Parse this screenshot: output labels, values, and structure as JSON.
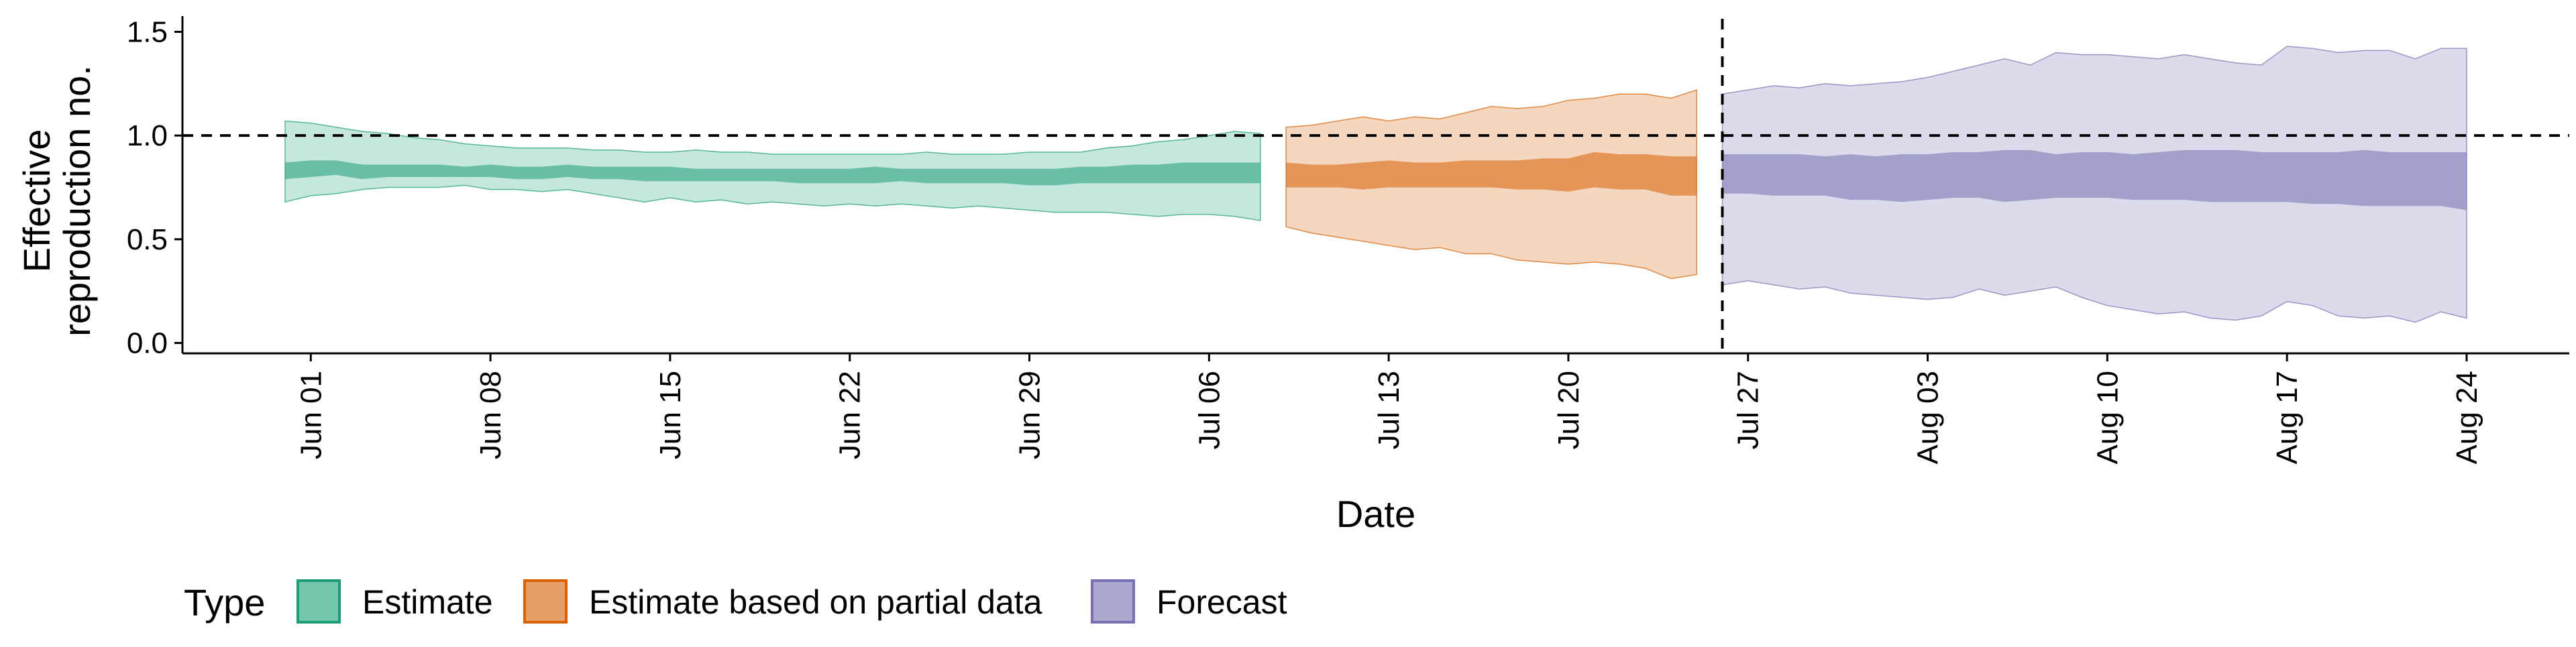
{
  "chart_data": {
    "type": "area",
    "title": "",
    "xlabel": "Date",
    "ylabel": "Effective\nreproduction no.",
    "ylim": [
      -0.05,
      1.55
    ],
    "xlim": [
      "2020-05-27",
      "2020-08-28"
    ],
    "y_ticks": [
      "0.0",
      "0.5",
      "1.0",
      "1.5"
    ],
    "x_ticks": [
      {
        "date": "2020-06-01",
        "label": "Jun 01"
      },
      {
        "date": "2020-06-08",
        "label": "Jun 08"
      },
      {
        "date": "2020-06-15",
        "label": "Jun 15"
      },
      {
        "date": "2020-06-22",
        "label": "Jun 22"
      },
      {
        "date": "2020-06-29",
        "label": "Jun 29"
      },
      {
        "date": "2020-07-06",
        "label": "Jul 06"
      },
      {
        "date": "2020-07-13",
        "label": "Jul 13"
      },
      {
        "date": "2020-07-20",
        "label": "Jul 20"
      },
      {
        "date": "2020-07-27",
        "label": "Jul 27"
      },
      {
        "date": "2020-08-03",
        "label": "Aug 03"
      },
      {
        "date": "2020-08-10",
        "label": "Aug 10"
      },
      {
        "date": "2020-08-17",
        "label": "Aug 17"
      },
      {
        "date": "2020-08-24",
        "label": "Aug 24"
      }
    ],
    "reference_lines": {
      "horizontal_y": 1.0,
      "vertical_date": "2020-07-26"
    },
    "grid": false,
    "legend": {
      "title": "Type",
      "position": "bottom",
      "entries": [
        "Estimate",
        "Estimate based on partial data",
        "Forecast"
      ]
    },
    "series": [
      {
        "name": "Estimate",
        "fill_color": "#1b9e77",
        "line_color": "#1b9e77",
        "points": [
          {
            "date": "2020-05-31",
            "lo90": 0.68,
            "hi90": 1.07,
            "lo50": 0.79,
            "hi50": 0.87
          },
          {
            "date": "2020-06-01",
            "lo90": 0.71,
            "hi90": 1.06,
            "lo50": 0.8,
            "hi50": 0.88
          },
          {
            "date": "2020-06-02",
            "lo90": 0.72,
            "hi90": 1.04,
            "lo50": 0.81,
            "hi50": 0.88
          },
          {
            "date": "2020-06-03",
            "lo90": 0.74,
            "hi90": 1.02,
            "lo50": 0.79,
            "hi50": 0.86
          },
          {
            "date": "2020-06-04",
            "lo90": 0.75,
            "hi90": 1.01,
            "lo50": 0.8,
            "hi50": 0.86
          },
          {
            "date": "2020-06-05",
            "lo90": 0.75,
            "hi90": 0.99,
            "lo50": 0.8,
            "hi50": 0.86
          },
          {
            "date": "2020-06-06",
            "lo90": 0.75,
            "hi90": 0.98,
            "lo50": 0.8,
            "hi50": 0.86
          },
          {
            "date": "2020-06-07",
            "lo90": 0.76,
            "hi90": 0.96,
            "lo50": 0.8,
            "hi50": 0.85
          },
          {
            "date": "2020-06-08",
            "lo90": 0.74,
            "hi90": 0.95,
            "lo50": 0.8,
            "hi50": 0.86
          },
          {
            "date": "2020-06-09",
            "lo90": 0.74,
            "hi90": 0.94,
            "lo50": 0.79,
            "hi50": 0.85
          },
          {
            "date": "2020-06-10",
            "lo90": 0.73,
            "hi90": 0.94,
            "lo50": 0.79,
            "hi50": 0.85
          },
          {
            "date": "2020-06-11",
            "lo90": 0.74,
            "hi90": 0.94,
            "lo50": 0.8,
            "hi50": 0.86
          },
          {
            "date": "2020-06-12",
            "lo90": 0.72,
            "hi90": 0.93,
            "lo50": 0.79,
            "hi50": 0.85
          },
          {
            "date": "2020-06-13",
            "lo90": 0.7,
            "hi90": 0.93,
            "lo50": 0.79,
            "hi50": 0.85
          },
          {
            "date": "2020-06-14",
            "lo90": 0.68,
            "hi90": 0.92,
            "lo50": 0.78,
            "hi50": 0.85
          },
          {
            "date": "2020-06-15",
            "lo90": 0.7,
            "hi90": 0.92,
            "lo50": 0.78,
            "hi50": 0.85
          },
          {
            "date": "2020-06-16",
            "lo90": 0.68,
            "hi90": 0.93,
            "lo50": 0.78,
            "hi50": 0.84
          },
          {
            "date": "2020-06-17",
            "lo90": 0.69,
            "hi90": 0.92,
            "lo50": 0.78,
            "hi50": 0.84
          },
          {
            "date": "2020-06-18",
            "lo90": 0.67,
            "hi90": 0.92,
            "lo50": 0.78,
            "hi50": 0.84
          },
          {
            "date": "2020-06-19",
            "lo90": 0.68,
            "hi90": 0.91,
            "lo50": 0.78,
            "hi50": 0.84
          },
          {
            "date": "2020-06-20",
            "lo90": 0.67,
            "hi90": 0.91,
            "lo50": 0.77,
            "hi50": 0.84
          },
          {
            "date": "2020-06-21",
            "lo90": 0.66,
            "hi90": 0.91,
            "lo50": 0.77,
            "hi50": 0.84
          },
          {
            "date": "2020-06-22",
            "lo90": 0.67,
            "hi90": 0.91,
            "lo50": 0.77,
            "hi50": 0.84
          },
          {
            "date": "2020-06-23",
            "lo90": 0.66,
            "hi90": 0.91,
            "lo50": 0.77,
            "hi50": 0.85
          },
          {
            "date": "2020-06-24",
            "lo90": 0.67,
            "hi90": 0.91,
            "lo50": 0.78,
            "hi50": 0.84
          },
          {
            "date": "2020-06-25",
            "lo90": 0.66,
            "hi90": 0.92,
            "lo50": 0.77,
            "hi50": 0.84
          },
          {
            "date": "2020-06-26",
            "lo90": 0.65,
            "hi90": 0.91,
            "lo50": 0.77,
            "hi50": 0.84
          },
          {
            "date": "2020-06-27",
            "lo90": 0.66,
            "hi90": 0.91,
            "lo50": 0.77,
            "hi50": 0.84
          },
          {
            "date": "2020-06-28",
            "lo90": 0.65,
            "hi90": 0.91,
            "lo50": 0.77,
            "hi50": 0.84
          },
          {
            "date": "2020-06-29",
            "lo90": 0.64,
            "hi90": 0.92,
            "lo50": 0.76,
            "hi50": 0.84
          },
          {
            "date": "2020-06-30",
            "lo90": 0.63,
            "hi90": 0.92,
            "lo50": 0.76,
            "hi50": 0.84
          },
          {
            "date": "2020-07-01",
            "lo90": 0.63,
            "hi90": 0.92,
            "lo50": 0.77,
            "hi50": 0.85
          },
          {
            "date": "2020-07-02",
            "lo90": 0.63,
            "hi90": 0.94,
            "lo50": 0.77,
            "hi50": 0.85
          },
          {
            "date": "2020-07-03",
            "lo90": 0.62,
            "hi90": 0.95,
            "lo50": 0.77,
            "hi50": 0.86
          },
          {
            "date": "2020-07-04",
            "lo90": 0.61,
            "hi90": 0.97,
            "lo50": 0.77,
            "hi50": 0.86
          },
          {
            "date": "2020-07-05",
            "lo90": 0.62,
            "hi90": 0.98,
            "lo50": 0.77,
            "hi50": 0.87
          },
          {
            "date": "2020-07-06",
            "lo90": 0.62,
            "hi90": 1.0,
            "lo50": 0.77,
            "hi50": 0.87
          },
          {
            "date": "2020-07-07",
            "lo90": 0.61,
            "hi90": 1.02,
            "lo50": 0.77,
            "hi50": 0.87
          },
          {
            "date": "2020-07-08",
            "lo90": 0.59,
            "hi90": 1.01,
            "lo50": 0.77,
            "hi50": 0.87
          }
        ]
      },
      {
        "name": "Estimate based on partial data",
        "fill_color": "#d95f02",
        "line_color": "#d95f02",
        "points": [
          {
            "date": "2020-07-09",
            "lo90": 0.56,
            "hi90": 1.04,
            "lo50": 0.75,
            "hi50": 0.87
          },
          {
            "date": "2020-07-10",
            "lo90": 0.53,
            "hi90": 1.05,
            "lo50": 0.75,
            "hi50": 0.86
          },
          {
            "date": "2020-07-11",
            "lo90": 0.51,
            "hi90": 1.07,
            "lo50": 0.75,
            "hi50": 0.86
          },
          {
            "date": "2020-07-12",
            "lo90": 0.49,
            "hi90": 1.09,
            "lo50": 0.74,
            "hi50": 0.87
          },
          {
            "date": "2020-07-13",
            "lo90": 0.47,
            "hi90": 1.07,
            "lo50": 0.75,
            "hi50": 0.88
          },
          {
            "date": "2020-07-14",
            "lo90": 0.45,
            "hi90": 1.09,
            "lo50": 0.75,
            "hi50": 0.87
          },
          {
            "date": "2020-07-15",
            "lo90": 0.46,
            "hi90": 1.08,
            "lo50": 0.75,
            "hi50": 0.87
          },
          {
            "date": "2020-07-16",
            "lo90": 0.43,
            "hi90": 1.11,
            "lo50": 0.75,
            "hi50": 0.88
          },
          {
            "date": "2020-07-17",
            "lo90": 0.43,
            "hi90": 1.14,
            "lo50": 0.75,
            "hi50": 0.88
          },
          {
            "date": "2020-07-18",
            "lo90": 0.4,
            "hi90": 1.13,
            "lo50": 0.74,
            "hi50": 0.88
          },
          {
            "date": "2020-07-19",
            "lo90": 0.39,
            "hi90": 1.14,
            "lo50": 0.74,
            "hi50": 0.89
          },
          {
            "date": "2020-07-20",
            "lo90": 0.38,
            "hi90": 1.17,
            "lo50": 0.73,
            "hi50": 0.89
          },
          {
            "date": "2020-07-21",
            "lo90": 0.39,
            "hi90": 1.18,
            "lo50": 0.75,
            "hi50": 0.92
          },
          {
            "date": "2020-07-22",
            "lo90": 0.38,
            "hi90": 1.2,
            "lo50": 0.74,
            "hi50": 0.91
          },
          {
            "date": "2020-07-23",
            "lo90": 0.36,
            "hi90": 1.2,
            "lo50": 0.74,
            "hi50": 0.91
          },
          {
            "date": "2020-07-24",
            "lo90": 0.31,
            "hi90": 1.18,
            "lo50": 0.71,
            "hi50": 0.9
          },
          {
            "date": "2020-07-25",
            "lo90": 0.33,
            "hi90": 1.22,
            "lo50": 0.71,
            "hi50": 0.9
          }
        ]
      },
      {
        "name": "Forecast",
        "fill_color": "#7570b3",
        "line_color": "#7570b3",
        "points": [
          {
            "date": "2020-07-26",
            "lo90": 0.28,
            "hi90": 1.2,
            "lo50": 0.72,
            "hi50": 0.91
          },
          {
            "date": "2020-07-27",
            "lo90": 0.3,
            "hi90": 1.22,
            "lo50": 0.72,
            "hi50": 0.91
          },
          {
            "date": "2020-07-28",
            "lo90": 0.28,
            "hi90": 1.24,
            "lo50": 0.71,
            "hi50": 0.91
          },
          {
            "date": "2020-07-29",
            "lo90": 0.26,
            "hi90": 1.23,
            "lo50": 0.71,
            "hi50": 0.91
          },
          {
            "date": "2020-07-30",
            "lo90": 0.27,
            "hi90": 1.25,
            "lo50": 0.71,
            "hi50": 0.9
          },
          {
            "date": "2020-07-31",
            "lo90": 0.24,
            "hi90": 1.24,
            "lo50": 0.69,
            "hi50": 0.91
          },
          {
            "date": "2020-08-01",
            "lo90": 0.23,
            "hi90": 1.25,
            "lo50": 0.69,
            "hi50": 0.9
          },
          {
            "date": "2020-08-02",
            "lo90": 0.22,
            "hi90": 1.26,
            "lo50": 0.68,
            "hi50": 0.91
          },
          {
            "date": "2020-08-03",
            "lo90": 0.21,
            "hi90": 1.28,
            "lo50": 0.69,
            "hi50": 0.91
          },
          {
            "date": "2020-08-04",
            "lo90": 0.22,
            "hi90": 1.31,
            "lo50": 0.7,
            "hi50": 0.92
          },
          {
            "date": "2020-08-05",
            "lo90": 0.26,
            "hi90": 1.34,
            "lo50": 0.7,
            "hi50": 0.92
          },
          {
            "date": "2020-08-06",
            "lo90": 0.23,
            "hi90": 1.37,
            "lo50": 0.68,
            "hi50": 0.93
          },
          {
            "date": "2020-08-07",
            "lo90": 0.25,
            "hi90": 1.34,
            "lo50": 0.69,
            "hi50": 0.93
          },
          {
            "date": "2020-08-08",
            "lo90": 0.27,
            "hi90": 1.4,
            "lo50": 0.7,
            "hi50": 0.91
          },
          {
            "date": "2020-08-09",
            "lo90": 0.22,
            "hi90": 1.39,
            "lo50": 0.7,
            "hi50": 0.92
          },
          {
            "date": "2020-08-10",
            "lo90": 0.18,
            "hi90": 1.39,
            "lo50": 0.7,
            "hi50": 0.92
          },
          {
            "date": "2020-08-11",
            "lo90": 0.16,
            "hi90": 1.38,
            "lo50": 0.69,
            "hi50": 0.91
          },
          {
            "date": "2020-08-12",
            "lo90": 0.14,
            "hi90": 1.37,
            "lo50": 0.69,
            "hi50": 0.92
          },
          {
            "date": "2020-08-13",
            "lo90": 0.15,
            "hi90": 1.39,
            "lo50": 0.69,
            "hi50": 0.93
          },
          {
            "date": "2020-08-14",
            "lo90": 0.12,
            "hi90": 1.37,
            "lo50": 0.68,
            "hi50": 0.93
          },
          {
            "date": "2020-08-15",
            "lo90": 0.11,
            "hi90": 1.35,
            "lo50": 0.68,
            "hi50": 0.93
          },
          {
            "date": "2020-08-16",
            "lo90": 0.13,
            "hi90": 1.34,
            "lo50": 0.68,
            "hi50": 0.92
          },
          {
            "date": "2020-08-17",
            "lo90": 0.2,
            "hi90": 1.43,
            "lo50": 0.68,
            "hi50": 0.92
          },
          {
            "date": "2020-08-18",
            "lo90": 0.18,
            "hi90": 1.42,
            "lo50": 0.67,
            "hi50": 0.92
          },
          {
            "date": "2020-08-19",
            "lo90": 0.13,
            "hi90": 1.4,
            "lo50": 0.67,
            "hi50": 0.92
          },
          {
            "date": "2020-08-20",
            "lo90": 0.12,
            "hi90": 1.41,
            "lo50": 0.66,
            "hi50": 0.93
          },
          {
            "date": "2020-08-21",
            "lo90": 0.13,
            "hi90": 1.41,
            "lo50": 0.66,
            "hi50": 0.92
          },
          {
            "date": "2020-08-22",
            "lo90": 0.1,
            "hi90": 1.37,
            "lo50": 0.66,
            "hi50": 0.92
          },
          {
            "date": "2020-08-23",
            "lo90": 0.15,
            "hi90": 1.42,
            "lo50": 0.66,
            "hi50": 0.92
          },
          {
            "date": "2020-08-24",
            "lo90": 0.12,
            "hi90": 1.42,
            "lo50": 0.64,
            "hi50": 0.92
          }
        ]
      }
    ]
  }
}
